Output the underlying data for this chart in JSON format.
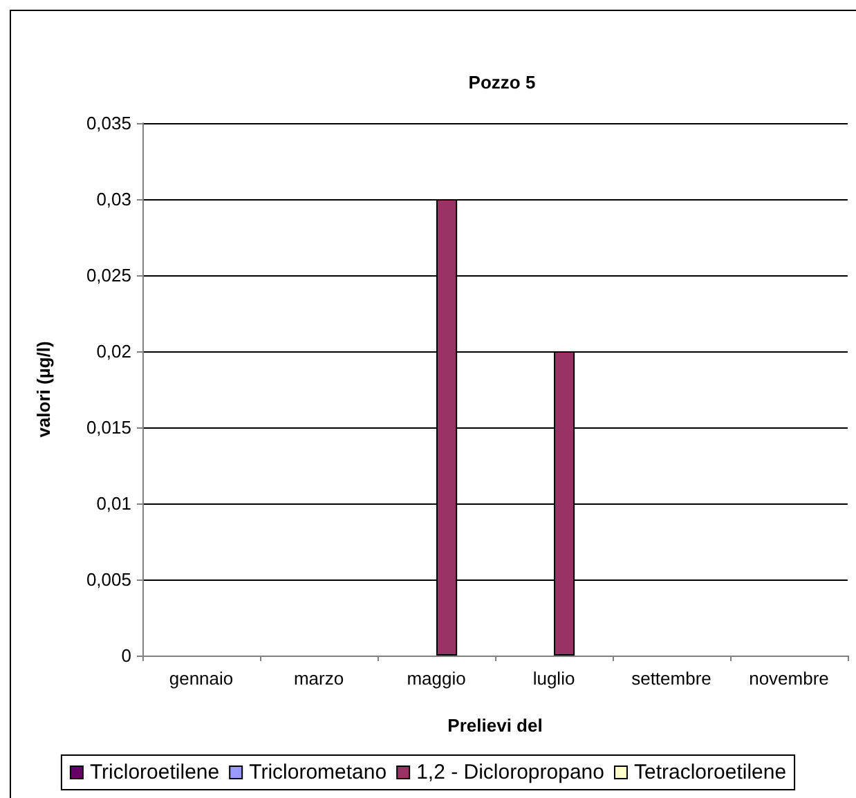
{
  "chart_data": {
    "type": "bar",
    "title": "Pozzo 5",
    "xlabel": "Prelievi del",
    "ylabel": "valori (µg/l)",
    "categories": [
      "gennaio",
      "marzo",
      "maggio",
      "luglio",
      "settembre",
      "novembre"
    ],
    "series": [
      {
        "name": "Tricloroetilene",
        "color": "#660066",
        "values": [
          null,
          null,
          null,
          null,
          null,
          null
        ]
      },
      {
        "name": "Triclorometano",
        "color": "#9999ff",
        "values": [
          null,
          null,
          null,
          null,
          null,
          null
        ]
      },
      {
        "name": "1,2 - Dicloropropano",
        "color": "#993366",
        "values": [
          null,
          null,
          0.03,
          0.02,
          null,
          null
        ]
      },
      {
        "name": "Tetracloroetilene",
        "color": "#ffffcc",
        "values": [
          null,
          null,
          null,
          null,
          null,
          null
        ]
      }
    ],
    "ylim": [
      0,
      0.035
    ],
    "yticks": [
      0,
      {
        "value": 0.005,
        "label": "0,005"
      },
      {
        "value": 0.01,
        "label": "0,01"
      },
      {
        "value": 0.015,
        "label": "0,015"
      },
      {
        "value": 0.02,
        "label": "0,02"
      },
      {
        "value": 0.025,
        "label": "0,025"
      },
      {
        "value": 0.03,
        "label": "0,03"
      },
      {
        "value": 0.035,
        "label": "0,035"
      }
    ],
    "grid": "y",
    "legend": "bottom"
  }
}
